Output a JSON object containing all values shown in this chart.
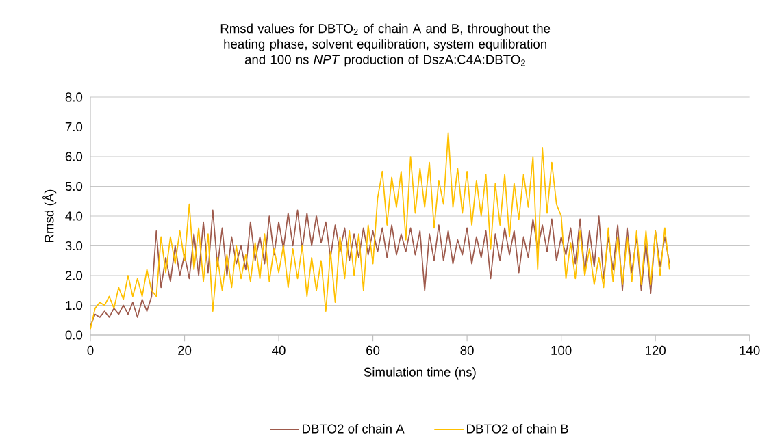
{
  "chart_data": {
    "type": "line",
    "title": "Rmsd values for DBTO$_{2}$ of chain A and B, throughout the heating phase, solvent equilibration, system equilibration and 100 ns *NPT* production of DszA:C4A:DBTO$_{2}$",
    "xlabel": "Simulation time (ns)",
    "ylabel": "Rmsd (Å)",
    "x": [
      0,
      1,
      2,
      3,
      4,
      5,
      6,
      7,
      8,
      9,
      10,
      11,
      12,
      13,
      14,
      15,
      16,
      17,
      18,
      19,
      20,
      21,
      22,
      23,
      24,
      25,
      26,
      27,
      28,
      29,
      30,
      31,
      32,
      33,
      34,
      35,
      36,
      37,
      38,
      39,
      40,
      41,
      42,
      43,
      44,
      45,
      46,
      47,
      48,
      49,
      50,
      51,
      52,
      53,
      54,
      55,
      56,
      57,
      58,
      59,
      60,
      61,
      62,
      63,
      64,
      65,
      66,
      67,
      68,
      69,
      70,
      71,
      72,
      73,
      74,
      75,
      76,
      77,
      78,
      79,
      80,
      81,
      82,
      83,
      84,
      85,
      86,
      87,
      88,
      89,
      90,
      91,
      92,
      93,
      94,
      95,
      96,
      97,
      98,
      99,
      100,
      101,
      102,
      103,
      104,
      105,
      106,
      107,
      108,
      109,
      110,
      111,
      112,
      113,
      114,
      115,
      116,
      117,
      118,
      119,
      120,
      121,
      122,
      123
    ],
    "series": [
      {
        "name": "DBTO2 of chain A",
        "color": "#9e5a4c",
        "values": [
          0.3,
          0.7,
          0.6,
          0.8,
          0.6,
          0.9,
          0.7,
          1.0,
          0.7,
          1.1,
          0.6,
          1.2,
          0.8,
          1.3,
          3.5,
          1.6,
          2.6,
          1.8,
          3.0,
          2.0,
          2.7,
          1.9,
          3.4,
          2.0,
          3.8,
          2.1,
          4.2,
          2.3,
          3.6,
          2.0,
          3.3,
          2.4,
          3.0,
          2.2,
          3.8,
          2.5,
          3.3,
          2.4,
          4.0,
          2.7,
          3.8,
          2.9,
          4.1,
          3.0,
          4.2,
          2.9,
          4.1,
          3.0,
          4.0,
          3.1,
          3.8,
          2.6,
          3.7,
          2.8,
          3.6,
          2.5,
          3.4,
          2.6,
          3.6,
          2.7,
          3.5,
          2.8,
          3.6,
          2.6,
          3.7,
          2.7,
          3.4,
          2.8,
          3.6,
          2.7,
          3.5,
          1.5,
          3.4,
          2.5,
          3.7,
          2.5,
          3.5,
          2.4,
          3.2,
          2.7,
          3.6,
          2.4,
          3.3,
          2.6,
          3.5,
          1.9,
          3.4,
          2.5,
          3.6,
          2.7,
          3.5,
          2.1,
          3.3,
          2.6,
          3.9,
          2.9,
          3.7,
          2.8,
          3.9,
          2.5,
          3.3,
          2.7,
          3.6,
          2.4,
          3.9,
          2.1,
          3.5,
          2.3,
          4.0,
          1.9,
          3.3,
          2.2,
          3.7,
          1.5,
          3.6,
          2.1,
          3.3,
          1.5,
          3.1,
          1.4,
          3.5,
          2.3,
          3.3,
          2.4
        ]
      },
      {
        "name": "DBTO2 of chain B",
        "color": "#ffc000",
        "values": [
          0.2,
          0.9,
          1.1,
          1.0,
          1.3,
          0.9,
          1.6,
          1.2,
          2.0,
          1.3,
          1.9,
          1.3,
          2.2,
          1.5,
          1.3,
          3.3,
          2.1,
          3.3,
          2.4,
          3.5,
          2.5,
          4.4,
          2.2,
          3.6,
          1.8,
          3.4,
          0.8,
          2.6,
          1.5,
          2.7,
          1.6,
          3.0,
          1.9,
          2.7,
          1.8,
          3.1,
          1.9,
          3.4,
          1.8,
          2.9,
          2.1,
          3.0,
          1.6,
          2.9,
          1.9,
          3.0,
          1.3,
          2.6,
          1.5,
          2.5,
          0.8,
          2.8,
          1.1,
          3.3,
          1.9,
          3.5,
          2.0,
          3.4,
          1.5,
          3.7,
          2.4,
          4.6,
          5.5,
          3.7,
          5.3,
          4.3,
          5.5,
          3.2,
          6.0,
          4.1,
          5.6,
          4.3,
          5.8,
          3.6,
          5.2,
          4.4,
          6.8,
          4.3,
          5.6,
          4.1,
          5.5,
          3.7,
          5.2,
          4.0,
          5.4,
          2.9,
          5.1,
          3.7,
          5.4,
          3.3,
          5.1,
          3.9,
          5.4,
          4.3,
          6.0,
          2.2,
          6.3,
          4.1,
          5.8,
          4.4,
          4.0,
          1.9,
          3.1,
          1.9,
          3.5,
          2.0,
          2.9,
          1.7,
          2.6,
          1.6,
          3.6,
          1.8,
          3.3,
          1.7,
          3.3,
          1.8,
          3.5,
          1.7,
          3.5,
          1.7,
          3.5,
          2.0,
          3.6,
          2.2
        ]
      }
    ],
    "xlim": [
      0,
      140
    ],
    "xticks": [
      0,
      20,
      40,
      60,
      80,
      100,
      120,
      140
    ],
    "ylim": [
      0,
      8
    ],
    "yticks": [
      {
        "value": 0,
        "label": "0.0"
      },
      {
        "value": 1,
        "label": "1.0"
      },
      {
        "value": 2,
        "label": "2.0"
      },
      {
        "value": 3,
        "label": "3.0"
      },
      {
        "value": 4,
        "label": "4.0"
      },
      {
        "value": 5,
        "label": "5.0"
      },
      {
        "value": 6,
        "label": "6.0"
      },
      {
        "value": 7,
        "label": "7.0"
      },
      {
        "value": 8,
        "label": "8.0"
      }
    ],
    "grid": "y",
    "legend": "bottom"
  }
}
